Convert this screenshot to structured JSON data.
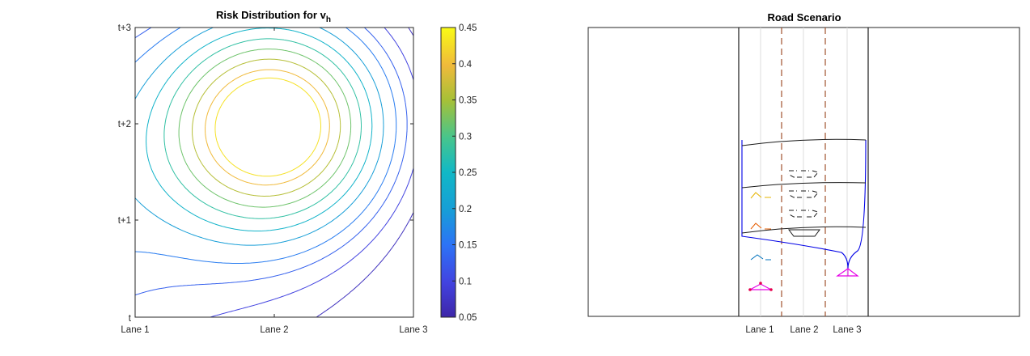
{
  "chart_data": [
    {
      "type": "contour",
      "title_main": "Risk Distribution for v",
      "title_sub": "h",
      "x_ticks": [
        "Lane 1",
        "Lane 2",
        "Lane 3"
      ],
      "y_ticks": [
        "t",
        "t+1",
        "t+2",
        "t+3"
      ],
      "colorbar": {
        "ticks": [
          "0.05",
          "0.1",
          "0.15",
          "0.2",
          "0.25",
          "0.3",
          "0.35",
          "0.4",
          "0.45"
        ],
        "range": [
          0.05,
          0.45
        ]
      },
      "levels": [
        0.05,
        0.1,
        0.15,
        0.2,
        0.25,
        0.3,
        0.35,
        0.4,
        0.45
      ],
      "peak": {
        "lane": 2,
        "time": "t+2",
        "value": 0.44
      }
    },
    {
      "type": "diagram",
      "title": "Road Scenario",
      "x_ticks": [
        "Lane 1",
        "Lane 2",
        "Lane 3"
      ]
    }
  ],
  "colors": {
    "axes": "#262626",
    "road_edge": "#1a1a1a",
    "lane_divider": "#a0522d",
    "lane_center": "#d9d9d9",
    "risk_region": "#0000e6",
    "ego_vehicle": "#e600e6",
    "observer": "#e6004c",
    "veh_orange": "#e6b400",
    "veh_red": "#e65c00",
    "veh_blue": "#0072bd"
  }
}
